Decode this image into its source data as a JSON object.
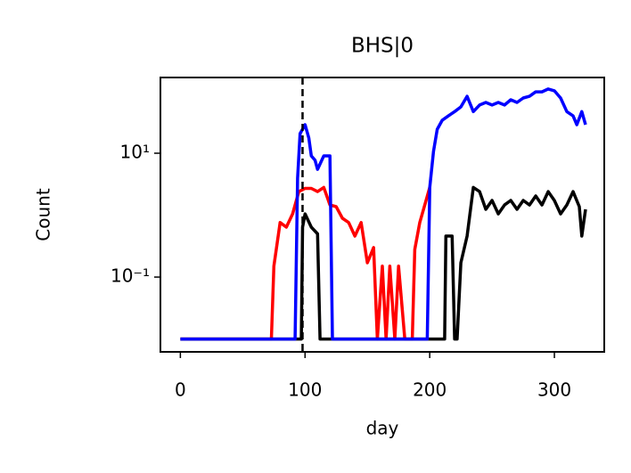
{
  "chart_data": {
    "type": "line",
    "title": "BHS|0",
    "xlabel": "day",
    "ylabel": "Count",
    "yscale": "log",
    "xlim": [
      -16,
      340
    ],
    "ylim": [
      0.0062,
      167
    ],
    "xticks": [
      0,
      100,
      200,
      300
    ],
    "yticks": [
      {
        "value": 0.1,
        "label": "10⁻¹"
      },
      {
        "value": 10,
        "label": "10¹"
      }
    ],
    "vlines": [
      98
    ],
    "series": [
      {
        "name": "red",
        "color": "#ff0000",
        "x": [
          0,
          73,
          75,
          80,
          85,
          90,
          95,
          100,
          105,
          110,
          115,
          120,
          125,
          130,
          135,
          140,
          145,
          150,
          155,
          158,
          162,
          165,
          168,
          172,
          175,
          180,
          186,
          188,
          192,
          196,
          200
        ],
        "values": [
          0.01,
          0.01,
          0.15,
          0.76,
          0.64,
          1.05,
          2.4,
          2.7,
          2.7,
          2.4,
          2.8,
          1.46,
          1.37,
          0.89,
          0.76,
          0.46,
          0.76,
          0.17,
          0.3,
          0.01,
          0.15,
          0.01,
          0.15,
          0.01,
          0.15,
          0.01,
          0.01,
          0.28,
          0.76,
          1.46,
          2.8
        ]
      },
      {
        "name": "black",
        "color": "#000000",
        "x": [
          0,
          97,
          98,
          100,
          105,
          110,
          112,
          212,
          213,
          218,
          220,
          222,
          225,
          230,
          235,
          240,
          245,
          250,
          255,
          260,
          265,
          270,
          275,
          280,
          285,
          290,
          295,
          300,
          305,
          310,
          315,
          320,
          322,
          325
        ],
        "values": [
          0.01,
          0.01,
          0.64,
          1.05,
          0.64,
          0.5,
          0.01,
          0.01,
          0.46,
          0.46,
          0.01,
          0.01,
          0.17,
          0.46,
          2.8,
          2.4,
          1.24,
          1.73,
          1.05,
          1.46,
          1.73,
          1.24,
          1.73,
          1.46,
          2.04,
          1.46,
          2.4,
          1.73,
          1.05,
          1.46,
          2.4,
          1.37,
          0.46,
          1.24
        ]
      },
      {
        "name": "blue",
        "color": "#0000ff",
        "x": [
          0,
          92,
          94,
          96,
          100,
          103,
          105,
          108,
          110,
          115,
          120,
          122,
          198,
          200,
          203,
          206,
          210,
          215,
          220,
          225,
          230,
          235,
          240,
          245,
          250,
          255,
          260,
          265,
          270,
          275,
          280,
          285,
          290,
          295,
          300,
          305,
          310,
          315,
          318,
          322,
          325
        ],
        "values": [
          0.01,
          0.01,
          3.96,
          20.7,
          28.9,
          17.6,
          9.06,
          7.7,
          5.5,
          9.06,
          9.06,
          0.01,
          0.01,
          2.8,
          10.7,
          24.4,
          34,
          40,
          47,
          56,
          83,
          47,
          60,
          66,
          60,
          66,
          60,
          73,
          66,
          78,
          83,
          98,
          98,
          109,
          102,
          78,
          47,
          40,
          28.9,
          47,
          28.9
        ]
      }
    ]
  }
}
